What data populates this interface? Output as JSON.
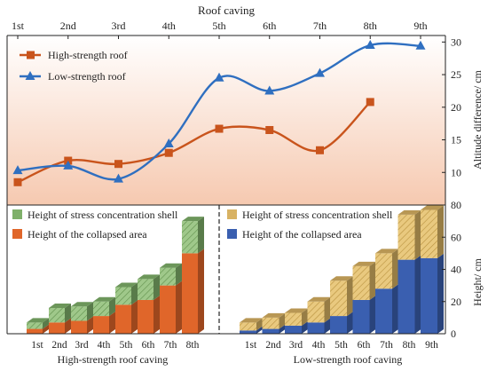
{
  "chart_data": [
    {
      "type": "line",
      "title": "",
      "x_top_label": "Roof caving",
      "x_top_ticks": [
        "1st",
        "2nd",
        "3rd",
        "4th",
        "5th",
        "6th",
        "7th",
        "8th",
        "9th"
      ],
      "ylabel": "Altitude difference/ cm",
      "ylim": [
        5,
        31
      ],
      "y_ticks": [
        "10",
        "15",
        "20",
        "25",
        "30"
      ],
      "grid": false,
      "legend_position": "top-left",
      "series": [
        {
          "name": "High-strength roof",
          "marker": "square",
          "color": "#c9541c",
          "x": [
            "1st",
            "2nd",
            "3rd",
            "4th",
            "5th",
            "6th",
            "7th",
            "8th"
          ],
          "values": [
            8.5,
            11.8,
            11.3,
            13.0,
            16.7,
            16.5,
            13.4,
            20.8
          ]
        },
        {
          "name": "Low-strength roof",
          "marker": "triangle",
          "color": "#2f6fc0",
          "x": [
            "1st",
            "2nd",
            "3rd",
            "4th",
            "5th",
            "6th",
            "7th",
            "8th",
            "9th"
          ],
          "values": [
            10.3,
            11.0,
            9.0,
            14.4,
            24.5,
            22.5,
            25.2,
            29.5,
            29.4
          ]
        }
      ]
    },
    {
      "type": "bar",
      "subtype": "3d-stacked",
      "xlabel": "High-strength roof caving",
      "categories": [
        "1st",
        "2nd",
        "3rd",
        "4th",
        "5th",
        "6th",
        "7th",
        "8th"
      ],
      "ylim": [
        0,
        80
      ],
      "legend_position": "top-left",
      "series": [
        {
          "name": "Height of the collapsed area",
          "color": "#e0662a",
          "values": [
            3,
            7,
            8,
            11,
            18,
            21,
            30,
            50
          ]
        },
        {
          "name": "Height of stress concentration shell",
          "color": "#7fb06a",
          "values": [
            4,
            9,
            9,
            9,
            11,
            13,
            11,
            20
          ]
        }
      ]
    },
    {
      "type": "bar",
      "subtype": "3d-stacked",
      "xlabel": "Low-strength roof caving",
      "ylabel": "Height/ cm",
      "categories": [
        "1st",
        "2nd",
        "3rd",
        "4th",
        "5th",
        "6th",
        "7th",
        "8th",
        "9th"
      ],
      "ylim": [
        0,
        80
      ],
      "y_ticks": [
        "0",
        "20",
        "40",
        "60",
        "80"
      ],
      "legend_position": "top-left",
      "series": [
        {
          "name": "Height of the collapsed area",
          "color": "#3a5fb0",
          "values": [
            2,
            3,
            5,
            7,
            11,
            21,
            28,
            46,
            47
          ]
        },
        {
          "name": "Height of stress concentration shell",
          "color": "#d8b263",
          "values": [
            5,
            7,
            8,
            13,
            22,
            21,
            22,
            28,
            30
          ]
        }
      ]
    }
  ]
}
